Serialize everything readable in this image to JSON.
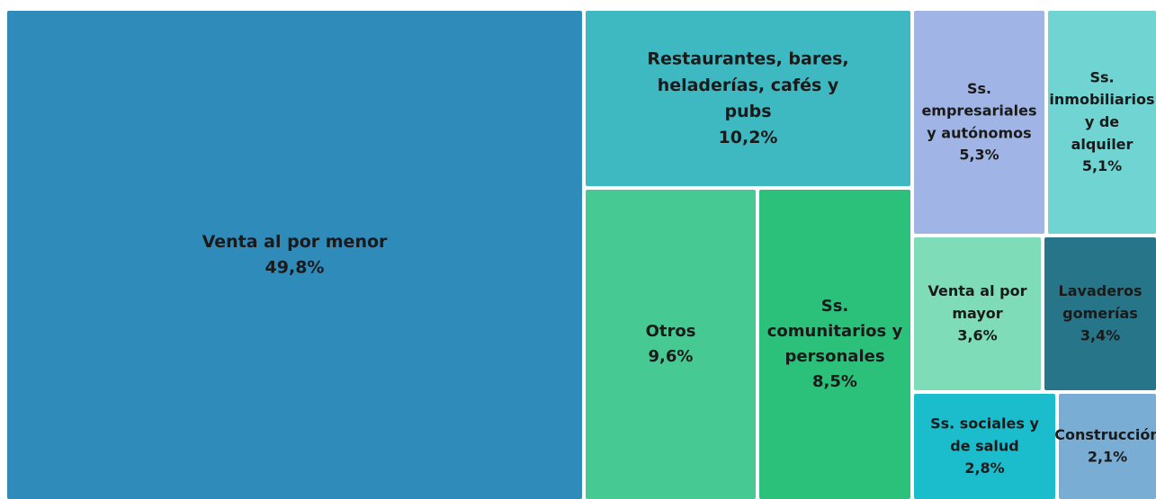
{
  "chart_data": {
    "type": "treemap",
    "categories": [
      "Venta al por menor",
      "Restaurantes, bares, heladerías, cafés y pubs",
      "Otros",
      "Ss. comunitarios y personales",
      "Ss. empresariales y autónomos",
      "Ss. inmobiliarios y de alquiler",
      "Venta al por mayor",
      "Lavaderos gomerías",
      "Ss. sociales y de salud",
      "Construcción"
    ],
    "values": [
      49.8,
      10.2,
      9.6,
      8.5,
      5.3,
      5.1,
      3.6,
      3.4,
      2.8,
      2.1
    ],
    "value_labels": [
      "49,8%",
      "10,2%",
      "9,6%",
      "8,5%",
      "5,3%",
      "5,1%",
      "3,6%",
      "3,4%",
      "2,8%",
      "2,1%"
    ],
    "colors": [
      "#2e8bba",
      "#3eb9c2",
      "#47c994",
      "#2cc17a",
      "#a0b5e5",
      "#6fd4d2",
      "#7edcb8",
      "#267589",
      "#1bbccc",
      "#7aadd4"
    ]
  }
}
